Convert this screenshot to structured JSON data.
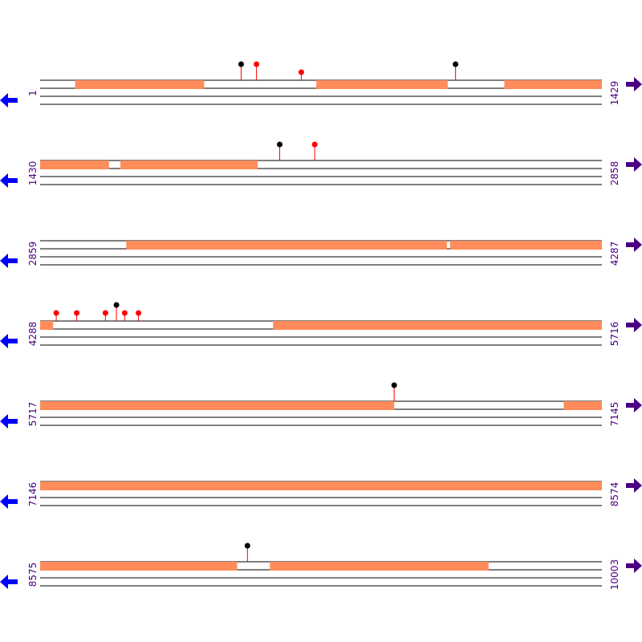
{
  "diagram": {
    "colors": {
      "segment": "#ff8c5a",
      "marker_red": "#ff0000",
      "marker_black": "#000000",
      "stem": "#ff0000",
      "arrow_left": "#0000ff",
      "arrow_right": "#4b0082",
      "label": "#4b0082",
      "line": "#000000"
    },
    "icons": {
      "left": "arrow-left-icon",
      "right": "arrow-right-icon"
    },
    "rows": [
      {
        "start_label": "1",
        "end_label": "1429",
        "start": 1,
        "end": 1429,
        "segments": [
          [
            90,
            418
          ],
          [
            703,
            1037
          ],
          [
            1181,
            1429
          ]
        ],
        "markers": [
          {
            "pos": 512,
            "color": "black",
            "size": "tall"
          },
          {
            "pos": 551,
            "color": "red",
            "size": "tall"
          },
          {
            "pos": 665,
            "color": "red",
            "size": "short"
          },
          {
            "pos": 1057,
            "color": "black",
            "size": "tall"
          }
        ]
      },
      {
        "start_label": "1430",
        "end_label": "2858",
        "start": 1430,
        "end": 2858,
        "segments": [
          [
            1430,
            1605
          ],
          [
            1634,
            1983
          ]
        ],
        "markers": [
          {
            "pos": 2039,
            "color": "black",
            "size": "tall"
          },
          {
            "pos": 2128,
            "color": "red",
            "size": "tall"
          }
        ]
      },
      {
        "start_label": "2859",
        "end_label": "4287",
        "start": 2859,
        "end": 4287,
        "segments": [
          [
            3078,
            3893
          ],
          [
            3901,
            4287
          ]
        ],
        "markers": []
      },
      {
        "start_label": "4288",
        "end_label": "5716",
        "start": 4288,
        "end": 5716,
        "segments": [
          [
            4288,
            4321
          ],
          [
            4880,
            5716
          ]
        ],
        "markers": [
          {
            "pos": 4329,
            "color": "red",
            "size": "short"
          },
          {
            "pos": 4381,
            "color": "red",
            "size": "short"
          },
          {
            "pos": 4454,
            "color": "red",
            "size": "short"
          },
          {
            "pos": 4482,
            "color": "black",
            "size": "tall"
          },
          {
            "pos": 4503,
            "color": "red",
            "size": "short"
          },
          {
            "pos": 4538,
            "color": "red",
            "size": "short"
          }
        ]
      },
      {
        "start_label": "5717",
        "end_label": "7145",
        "start": 5717,
        "end": 7145,
        "segments": [
          [
            5717,
            6617
          ],
          [
            7048,
            7145
          ]
        ],
        "markers": [
          {
            "pos": 6617,
            "color": "black",
            "size": "tall"
          }
        ]
      },
      {
        "start_label": "7146",
        "end_label": "8574",
        "start": 7146,
        "end": 8574,
        "segments": [
          [
            7146,
            8574
          ]
        ],
        "markers": []
      },
      {
        "start_label": "8575",
        "end_label": "10003",
        "start": 8575,
        "end": 10003,
        "segments": [
          [
            8575,
            9076
          ],
          [
            9159,
            9715
          ]
        ],
        "markers": [
          {
            "pos": 9102,
            "color": "black",
            "size": "tall"
          }
        ]
      }
    ]
  }
}
